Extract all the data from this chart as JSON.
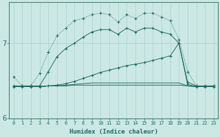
{
  "xlabel": "Humidex (Indice chaleur)",
  "x_ticks": [
    0,
    1,
    2,
    3,
    4,
    5,
    6,
    7,
    8,
    9,
    10,
    11,
    12,
    13,
    14,
    15,
    16,
    17,
    18,
    19,
    20,
    21,
    22,
    23
  ],
  "ylim": [
    6.0,
    7.55
  ],
  "yticks": [
    6,
    7
  ],
  "bg_color": "#cce8e5",
  "grid_color": "#aad0cc",
  "line_color": "#1a6b5e",
  "series": {
    "curve1_dotted": {
      "x": [
        0,
        1,
        2,
        3,
        4,
        5,
        6,
        7,
        8,
        9,
        10,
        11,
        12,
        13,
        14,
        15,
        16,
        17,
        18,
        19,
        20,
        21,
        22,
        23
      ],
      "y": [
        6.55,
        6.43,
        6.43,
        6.6,
        6.88,
        7.1,
        7.2,
        7.3,
        7.33,
        7.38,
        7.4,
        7.38,
        7.28,
        7.38,
        7.33,
        7.4,
        7.4,
        7.35,
        7.3,
        7.05,
        6.62,
        6.43,
        6.43,
        6.43
      ],
      "linestyle": "dotted",
      "marker": "+"
    },
    "curve2_solid": {
      "x": [
        0,
        1,
        2,
        3,
        4,
        5,
        6,
        7,
        8,
        9,
        10,
        11,
        12,
        13,
        14,
        15,
        16,
        17,
        18,
        19,
        20,
        21,
        22,
        23
      ],
      "y": [
        6.43,
        6.43,
        6.43,
        6.43,
        6.62,
        6.82,
        6.93,
        7.0,
        7.08,
        7.15,
        7.18,
        7.18,
        7.12,
        7.2,
        7.15,
        7.2,
        7.2,
        7.15,
        7.12,
        7.0,
        6.48,
        6.43,
        6.43,
        6.43
      ],
      "linestyle": "solid",
      "marker": "+"
    },
    "curve3_diagonal": {
      "x": [
        0,
        1,
        2,
        3,
        4,
        5,
        6,
        7,
        8,
        9,
        10,
        11,
        12,
        13,
        14,
        15,
        16,
        17,
        18,
        19,
        20,
        21,
        22,
        23
      ],
      "y": [
        6.42,
        6.42,
        6.42,
        6.42,
        6.43,
        6.44,
        6.46,
        6.49,
        6.53,
        6.57,
        6.61,
        6.64,
        6.67,
        6.7,
        6.72,
        6.74,
        6.77,
        6.8,
        6.83,
        7.0,
        6.45,
        6.42,
        6.42,
        6.42
      ],
      "linestyle": "solid",
      "marker": "+"
    },
    "curve4_flat1": {
      "x": [
        0,
        1,
        2,
        3,
        4,
        5,
        6,
        7,
        8,
        9,
        10,
        11,
        12,
        13,
        14,
        15,
        16,
        17,
        18,
        19,
        20,
        21,
        22,
        23
      ],
      "y": [
        6.42,
        6.42,
        6.42,
        6.42,
        6.43,
        6.43,
        6.43,
        6.44,
        6.44,
        6.44,
        6.44,
        6.44,
        6.44,
        6.44,
        6.44,
        6.44,
        6.44,
        6.44,
        6.44,
        6.44,
        6.43,
        6.42,
        6.42,
        6.42
      ],
      "linestyle": "solid",
      "marker": null
    },
    "curve5_flat2": {
      "x": [
        0,
        1,
        2,
        3,
        4,
        5,
        6,
        7,
        8,
        9,
        10,
        11,
        12,
        13,
        14,
        15,
        16,
        17,
        18,
        19,
        20,
        21,
        22,
        23
      ],
      "y": [
        6.42,
        6.42,
        6.42,
        6.42,
        6.43,
        6.43,
        6.44,
        6.45,
        6.46,
        6.47,
        6.47,
        6.47,
        6.47,
        6.47,
        6.47,
        6.47,
        6.47,
        6.47,
        6.47,
        6.47,
        6.43,
        6.42,
        6.42,
        6.42
      ],
      "linestyle": "solid",
      "marker": null
    }
  }
}
